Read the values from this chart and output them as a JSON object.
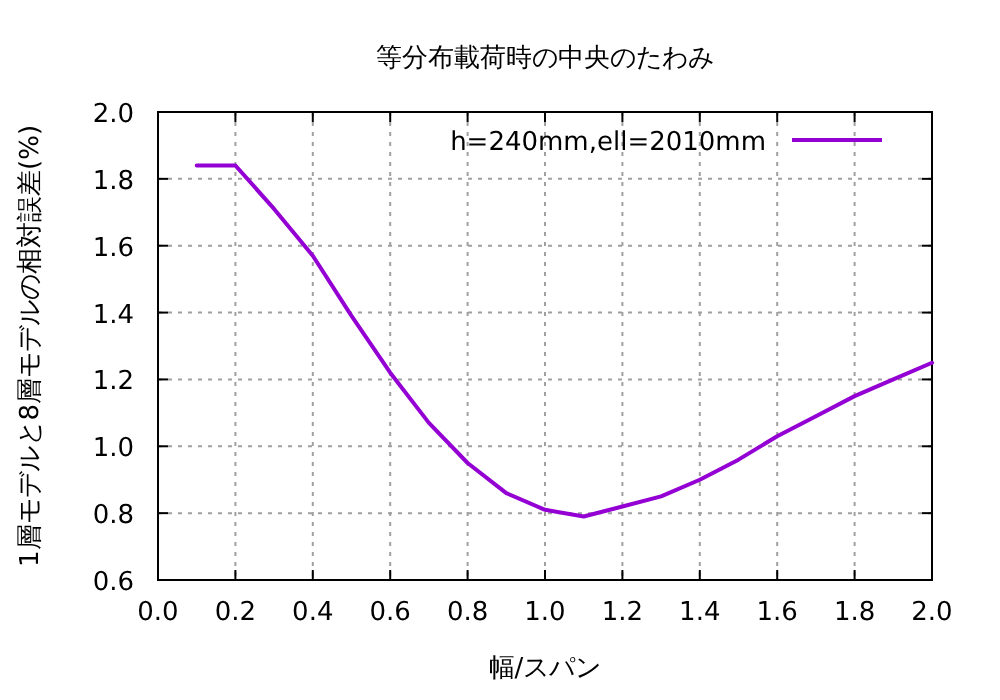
{
  "chart_data": {
    "type": "line",
    "title": "等分布載荷時の中央のたわみ",
    "xlabel": "幅/スパン",
    "ylabel": "1層モデルと8層モデルの相対誤差(%)",
    "x": [
      0.1,
      0.2,
      0.3,
      0.4,
      0.5,
      0.6,
      0.7,
      0.8,
      0.9,
      1.0,
      1.1,
      1.2,
      1.3,
      1.4,
      1.5,
      1.6,
      1.7,
      1.8,
      1.9,
      2.0
    ],
    "series": [
      {
        "name": "h=240mm,ell=2010mm",
        "color": "#9400d3",
        "values": [
          1.84,
          1.84,
          1.71,
          1.57,
          1.39,
          1.22,
          1.07,
          0.95,
          0.86,
          0.81,
          0.79,
          0.82,
          0.85,
          0.9,
          0.96,
          1.03,
          1.09,
          1.15,
          1.2,
          1.25
        ]
      }
    ],
    "xlim": [
      0,
      2
    ],
    "ylim": [
      0.6,
      2
    ],
    "xticks": [
      {
        "value": 0,
        "label": "0.0"
      },
      0.2,
      0.4,
      0.6,
      0.8,
      {
        "value": 1,
        "label": "1.0"
      },
      1.2,
      1.4,
      1.6,
      1.8,
      {
        "value": 2,
        "label": "2.0"
      }
    ],
    "yticks": [
      0.6,
      0.8,
      {
        "value": 1,
        "label": "1.0"
      },
      1.2,
      1.4,
      1.6,
      1.8,
      {
        "value": 2,
        "label": "2.0"
      }
    ],
    "grid": true,
    "legend": "top right",
    "line_style": "solid"
  }
}
